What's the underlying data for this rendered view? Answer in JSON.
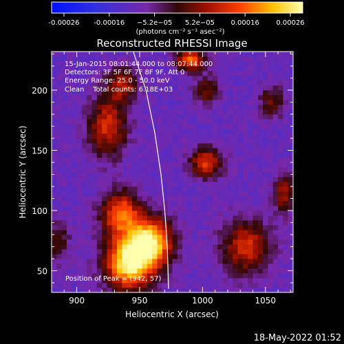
{
  "chart_data": {
    "type": "heatmap",
    "title": "Reconstructed RHESSI Image",
    "xlabel": "Heliocentric X (arcsec)",
    "ylabel": "Heliocentric Y (arcsec)",
    "xlim": [
      880,
      1072
    ],
    "ylim": [
      32,
      232
    ],
    "xticks": [
      900,
      950,
      1000,
      1050
    ],
    "yticks": [
      50,
      100,
      150,
      200
    ],
    "colorbar": {
      "ticks": [
        "-0.00026",
        "-0.00016",
        "−5.2e−05",
        "5.2e−05",
        "0.00016",
        "0.00026"
      ],
      "range": [
        -0.00026,
        0.00026
      ],
      "units_line": "(photons cm⁻² s⁻¹ asec⁻²)"
    },
    "annotations": [
      "15-Jan-2015 08:01:44.000 to 08:07:44.000",
      "Detectors: 3F 5F 6F 7F 8F 9F, Att 0",
      "Energy Range: 25.0 - 50.0 keV",
      "Clean    Total counts: 6.18E+03"
    ],
    "peak_label": "Position of Peak = (942, 57)",
    "limb": [
      [
        945,
        232
      ],
      [
        955,
        200
      ],
      [
        962,
        165
      ],
      [
        967,
        130
      ],
      [
        970,
        100
      ],
      [
        972,
        70
      ],
      [
        973,
        35
      ]
    ],
    "sources": [
      {
        "x": 942,
        "y": 57,
        "sx": 14,
        "sy": 16,
        "amp": 1.0
      },
      {
        "x": 960,
        "y": 75,
        "sx": 12,
        "sy": 14,
        "amp": 0.85
      },
      {
        "x": 935,
        "y": 98,
        "sx": 11,
        "sy": 13,
        "amp": 0.7
      },
      {
        "x": 925,
        "y": 170,
        "sx": 11,
        "sy": 18,
        "amp": 0.55
      },
      {
        "x": 937,
        "y": 205,
        "sx": 9,
        "sy": 10,
        "amp": 0.45
      },
      {
        "x": 1003,
        "y": 140,
        "sx": 9,
        "sy": 9,
        "amp": 0.6
      },
      {
        "x": 1003,
        "y": 200,
        "sx": 7,
        "sy": 9,
        "amp": 0.35
      },
      {
        "x": 990,
        "y": 225,
        "sx": 8,
        "sy": 6,
        "amp": 0.7
      },
      {
        "x": 1035,
        "y": 70,
        "sx": 14,
        "sy": 16,
        "amp": 0.55
      },
      {
        "x": 1065,
        "y": 115,
        "sx": 6,
        "sy": 12,
        "amp": 0.45
      },
      {
        "x": 1055,
        "y": 190,
        "sx": 7,
        "sy": 10,
        "amp": 0.35
      },
      {
        "x": 885,
        "y": 75,
        "sx": 7,
        "sy": 12,
        "amp": 0.3
      }
    ],
    "background_level": -0.35
  },
  "footer": {
    "timestamp": "18-May-2022 01:52"
  }
}
